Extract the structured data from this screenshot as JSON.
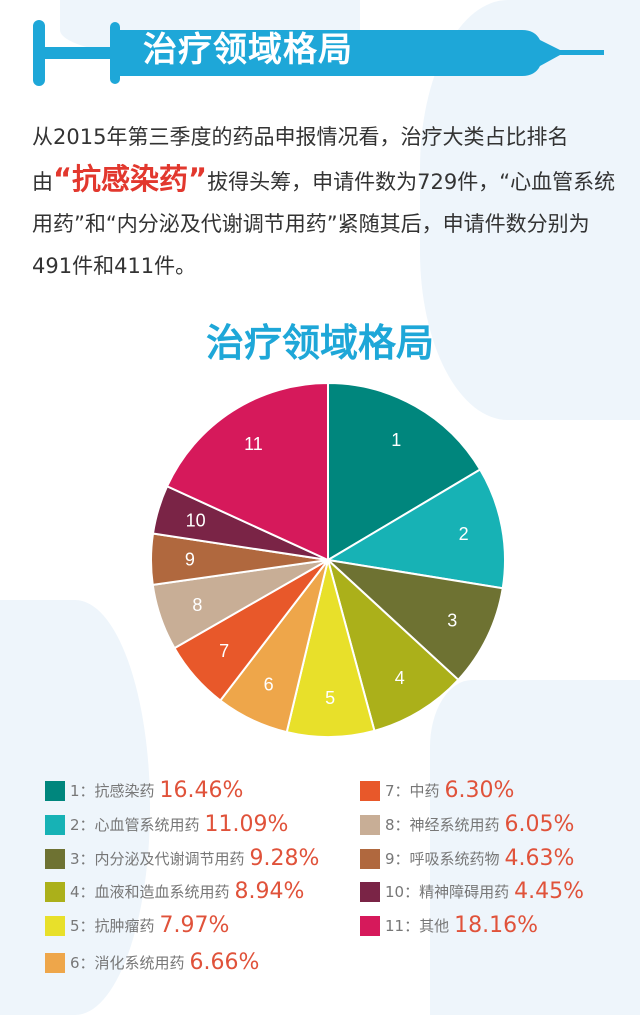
{
  "banner": {
    "title": "治疗领域格局"
  },
  "intro": {
    "part1": "从2015年第三季度的药品申报情况看，治疗大类占比排名由",
    "highlight": "“抗感染药”",
    "part2": "拔得头筹，申请件数为729件，“心血管系统用药”和“内分泌及代谢调节用药”紧随其后，申请件数分别为491件和411件。"
  },
  "chart_data": {
    "type": "pie",
    "title": "治疗领域格局",
    "start": "top",
    "direction": "clockwise",
    "legend_position": "bottom",
    "slices": [
      {
        "id": "1",
        "label": "1：抗感染药",
        "value": 16.46,
        "value_label": "16.46%",
        "color": "#00867d"
      },
      {
        "id": "2",
        "label": "2：心血管系统用药",
        "value": 11.09,
        "value_label": "11.09%",
        "color": "#17b2b5"
      },
      {
        "id": "3",
        "label": "3：内分泌及代谢调节用药",
        "value": 9.28,
        "value_label": "9.28%",
        "color": "#6e7232"
      },
      {
        "id": "4",
        "label": "4：血液和造血系统用药",
        "value": 8.94,
        "value_label": "8.94%",
        "color": "#abb01a"
      },
      {
        "id": "5",
        "label": "5：抗肿瘤药",
        "value": 7.97,
        "value_label": "7.97%",
        "color": "#e8e02a"
      },
      {
        "id": "6",
        "label": "6：消化系统用药",
        "value": 6.66,
        "value_label": "6.66%",
        "color": "#eea64a"
      },
      {
        "id": "7",
        "label": "7：中药",
        "value": 6.3,
        "value_label": "6.30%",
        "color": "#e8582a"
      },
      {
        "id": "8",
        "label": "8：神经系统用药",
        "value": 6.05,
        "value_label": "6.05%",
        "color": "#c8ae96"
      },
      {
        "id": "9",
        "label": "9：呼吸系统药物",
        "value": 4.63,
        "value_label": "4.63%",
        "color": "#b0683e"
      },
      {
        "id": "10",
        "label": "10：精神障碍用药",
        "value": 4.45,
        "value_label": "4.45%",
        "color": "#7a2446"
      },
      {
        "id": "11",
        "label": "11：其他",
        "value": 18.16,
        "value_label": "18.16%",
        "color": "#d6195b"
      }
    ]
  }
}
